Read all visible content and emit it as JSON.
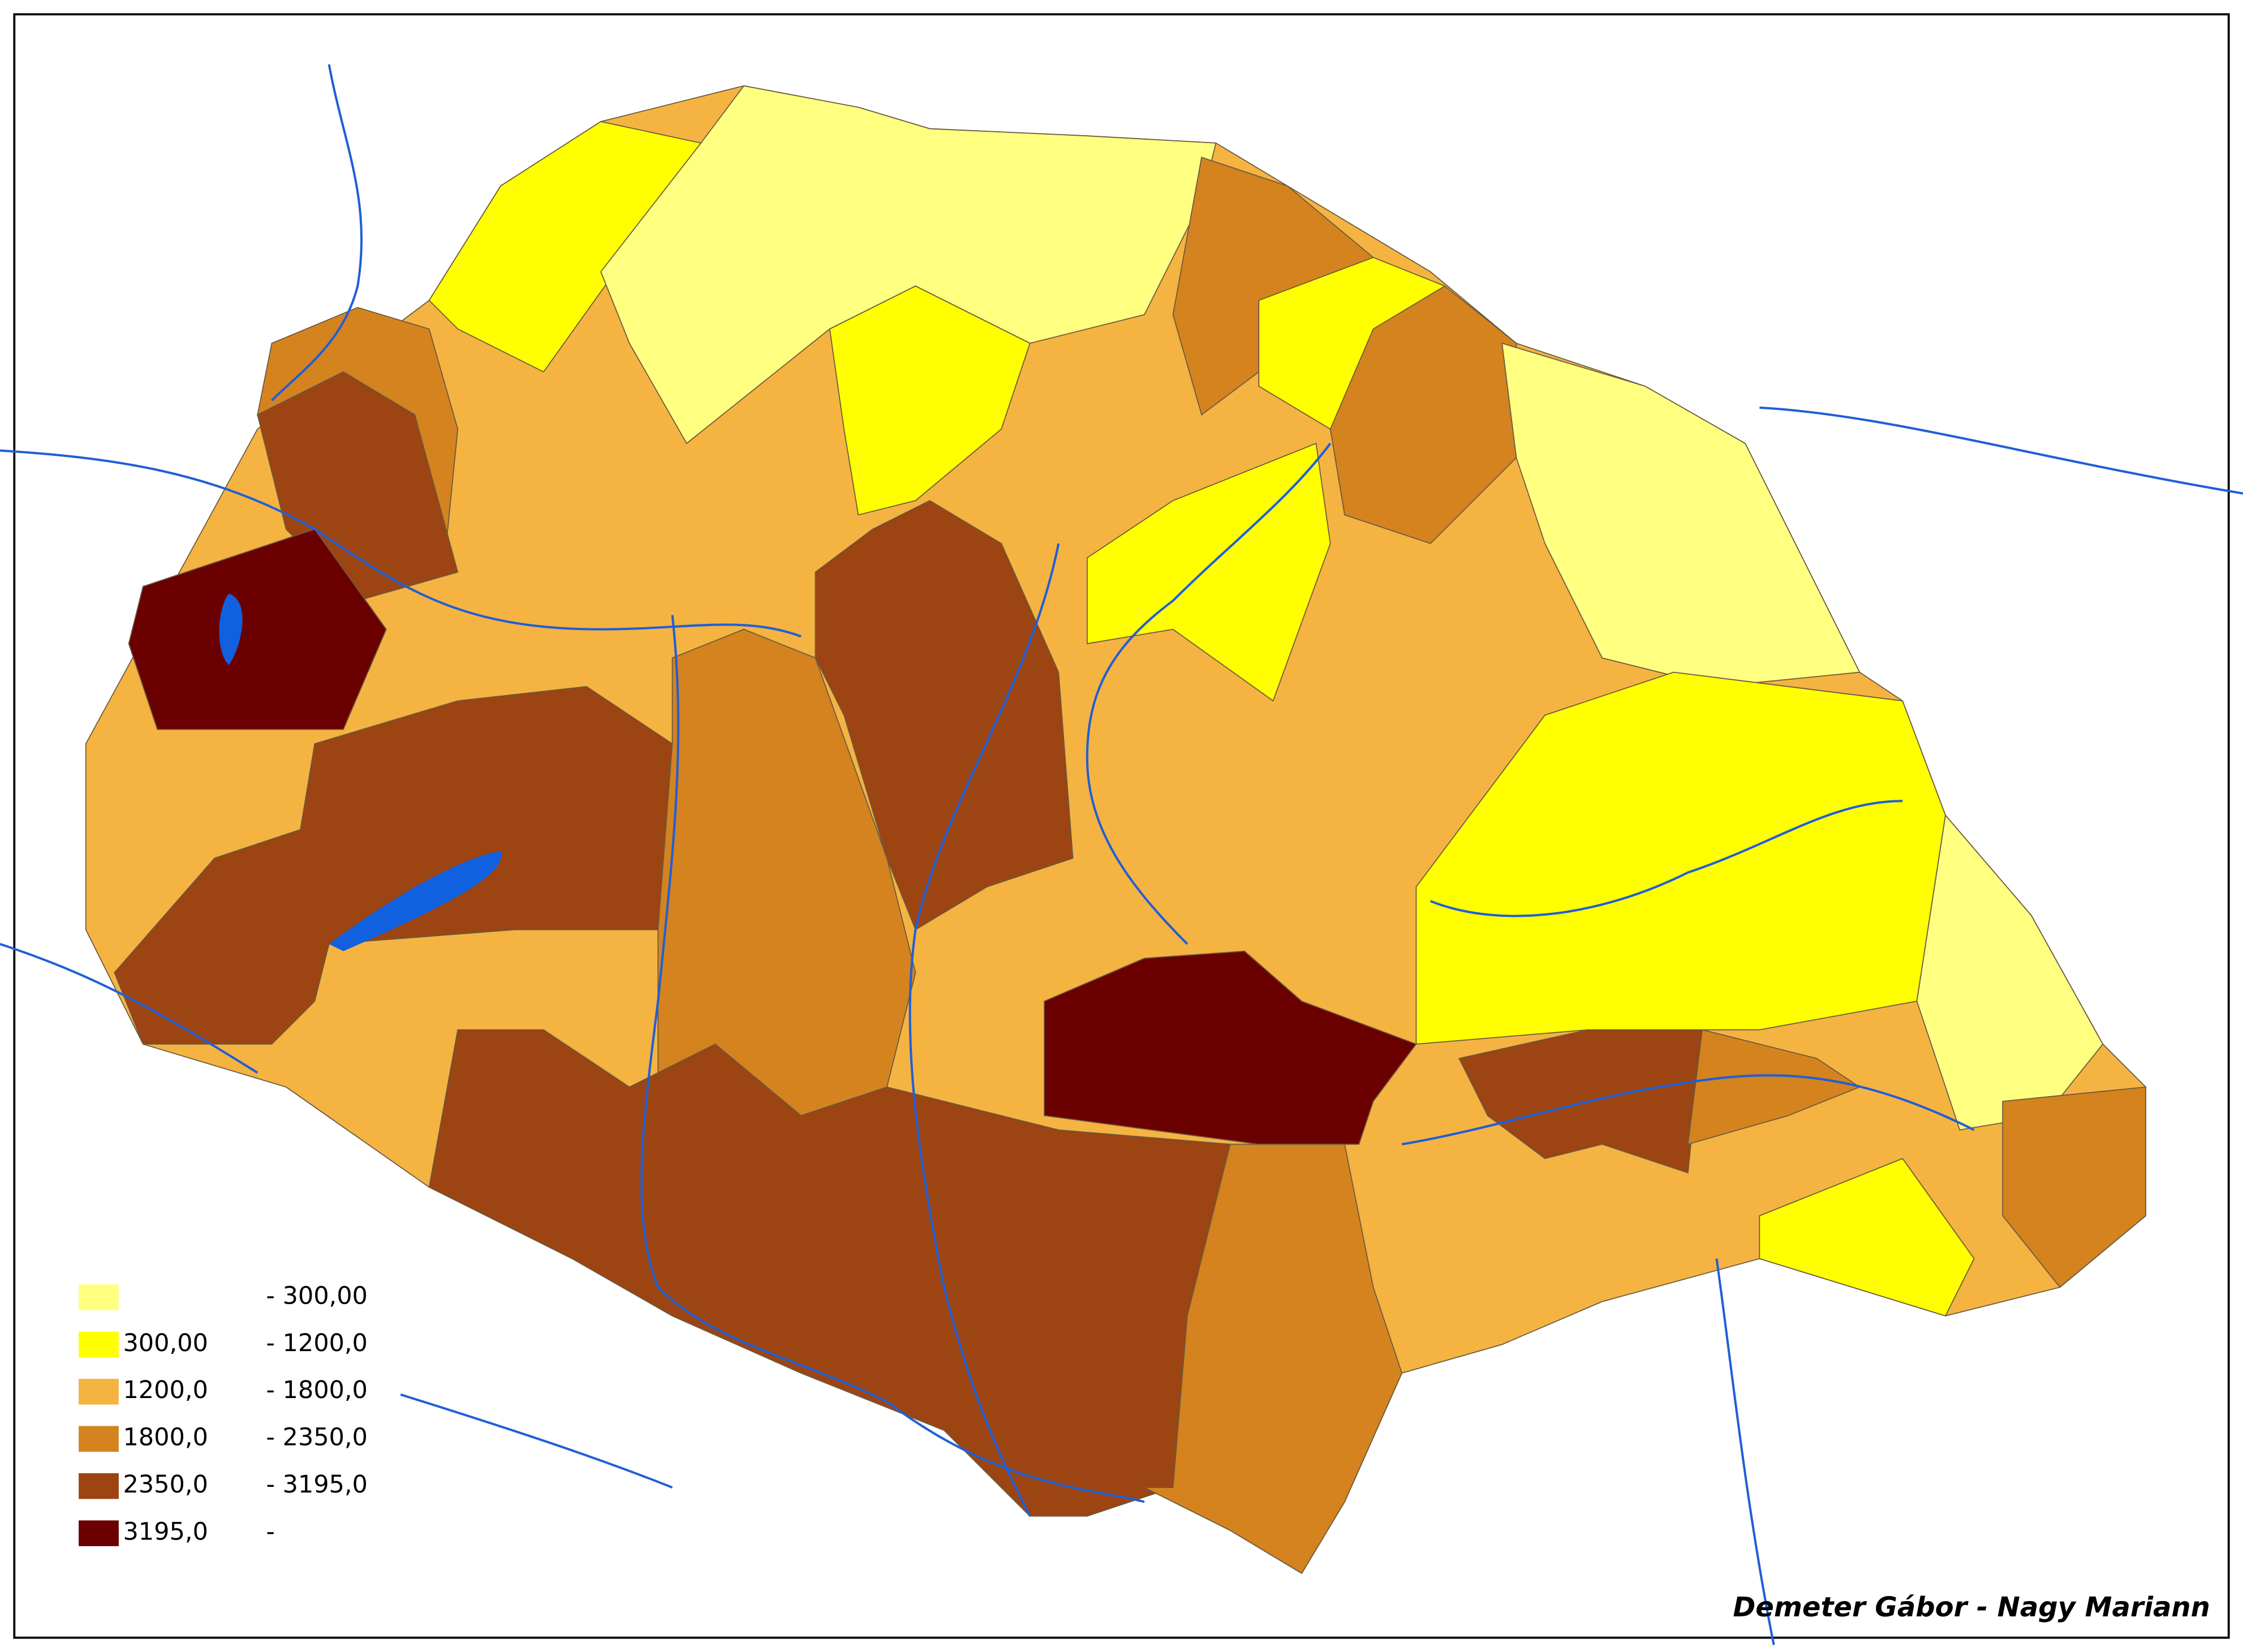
{
  "legend": {
    "items": [
      {
        "to": "- 300,00",
        "color": "#ffff80"
      },
      {
        "from": "300,00",
        "to": "- 1200,0",
        "color": "#ffff00"
      },
      {
        "from": "1200,0",
        "to": "- 1800,0",
        "color": "#f5b342"
      },
      {
        "from": "1800,0",
        "to": "- 2350,0",
        "color": "#d4831f"
      },
      {
        "from": "2350,0",
        "to": "- 3195,0",
        "color": "#9c4412"
      },
      {
        "from": "3195,0",
        "to": "-",
        "color": "#6b0000"
      }
    ]
  },
  "credit": "Demeter Gábor - Nagy Mariann"
}
